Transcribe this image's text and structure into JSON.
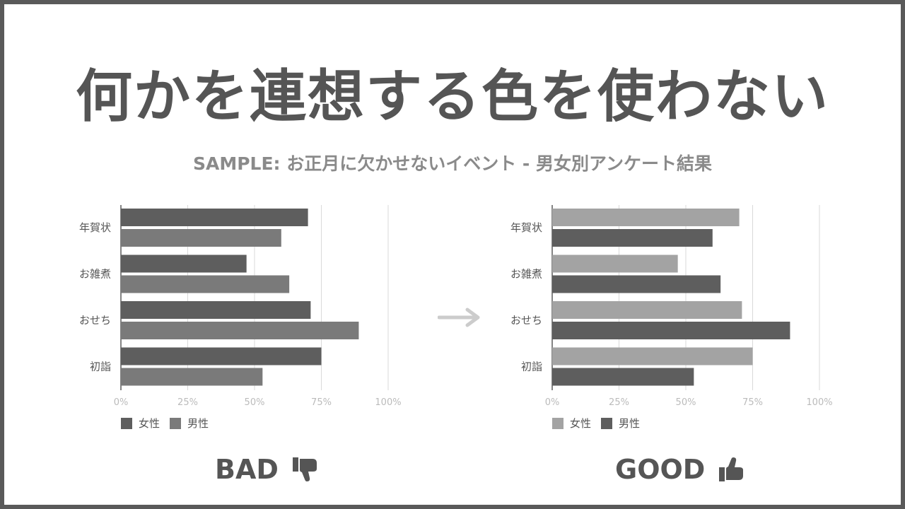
{
  "title": "何かを連想する色を使わない",
  "subtitle": "SAMPLE:  お正月に欠かせないイベント - 男女別アンケート結果",
  "colors": {
    "frame": "#5a5a5a",
    "dark": "#5e5e5e",
    "medium": "#7a7a7a",
    "light": "#a3a3a3",
    "grid": "#d9d9d9",
    "axis": "#333333",
    "arrow": "#cccccc"
  },
  "chart_data": [
    {
      "id": "bad",
      "type": "bar",
      "orientation": "horizontal",
      "categories": [
        "年賀状",
        "お雑煮",
        "おせち",
        "初詣"
      ],
      "series": [
        {
          "name": "女性",
          "values": [
            70,
            47,
            71,
            75
          ],
          "color": "#5e5e5e"
        },
        {
          "name": "男性",
          "values": [
            60,
            63,
            89,
            53
          ],
          "color": "#7a7a7a"
        }
      ],
      "x_ticks": [
        "0%",
        "25%",
        "50%",
        "75%",
        "100%"
      ],
      "xlim": [
        0,
        100
      ],
      "unit": "%",
      "grid": true,
      "legend_position": "bottom-left",
      "verdict": "BAD",
      "verdict_icon": "thumbs-down-icon"
    },
    {
      "id": "good",
      "type": "bar",
      "orientation": "horizontal",
      "categories": [
        "年賀状",
        "お雑煮",
        "おせち",
        "初詣"
      ],
      "series": [
        {
          "name": "女性",
          "values": [
            70,
            47,
            71,
            75
          ],
          "color": "#a3a3a3"
        },
        {
          "name": "男性",
          "values": [
            60,
            63,
            89,
            53
          ],
          "color": "#5e5e5e"
        }
      ],
      "x_ticks": [
        "0%",
        "25%",
        "50%",
        "75%",
        "100%"
      ],
      "xlim": [
        0,
        100
      ],
      "unit": "%",
      "grid": true,
      "legend_position": "bottom-left",
      "verdict": "GOOD",
      "verdict_icon": "thumbs-up-icon"
    }
  ]
}
